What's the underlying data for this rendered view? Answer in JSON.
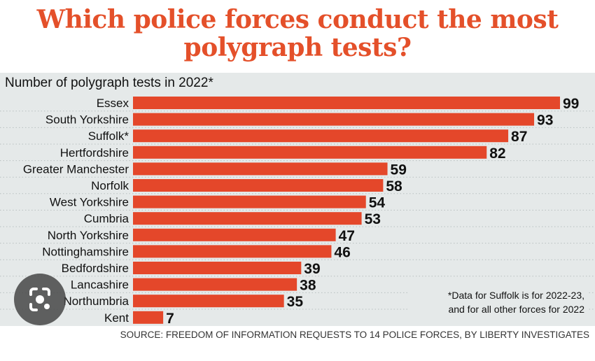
{
  "title": "Which police forces conduct the most polygraph tests?",
  "footnote_lines": [
    "*Data for Suffolk is for 2022-23,",
    "and for all other forces for 2022"
  ],
  "source": "SOURCE: FREEDOM OF INFORMATION REQUESTS TO 14 POLICE FORCES, BY LIBERTY INVESTIGATES",
  "overlay_icon": "google-lens-icon",
  "chart_data": {
    "type": "bar",
    "orientation": "horizontal",
    "title": "Which police forces conduct the most polygraph tests?",
    "subtitle": "Number of polygraph tests in 2022*",
    "categories": [
      "Essex",
      "South Yorkshire",
      "Suffolk*",
      "Hertfordshire",
      "Greater Manchester",
      "Norfolk",
      "West Yorkshire",
      "Cumbria",
      "North Yorkshire",
      "Nottinghamshire",
      "Bedfordshire",
      "Lancashire",
      "Northumbria",
      "Kent"
    ],
    "values": [
      99,
      93,
      87,
      82,
      59,
      58,
      54,
      53,
      47,
      46,
      39,
      38,
      35,
      7
    ],
    "xlim": [
      0,
      99
    ],
    "bar_color": "#e4472a",
    "data_labels": true,
    "grid": "dotted row separators"
  }
}
